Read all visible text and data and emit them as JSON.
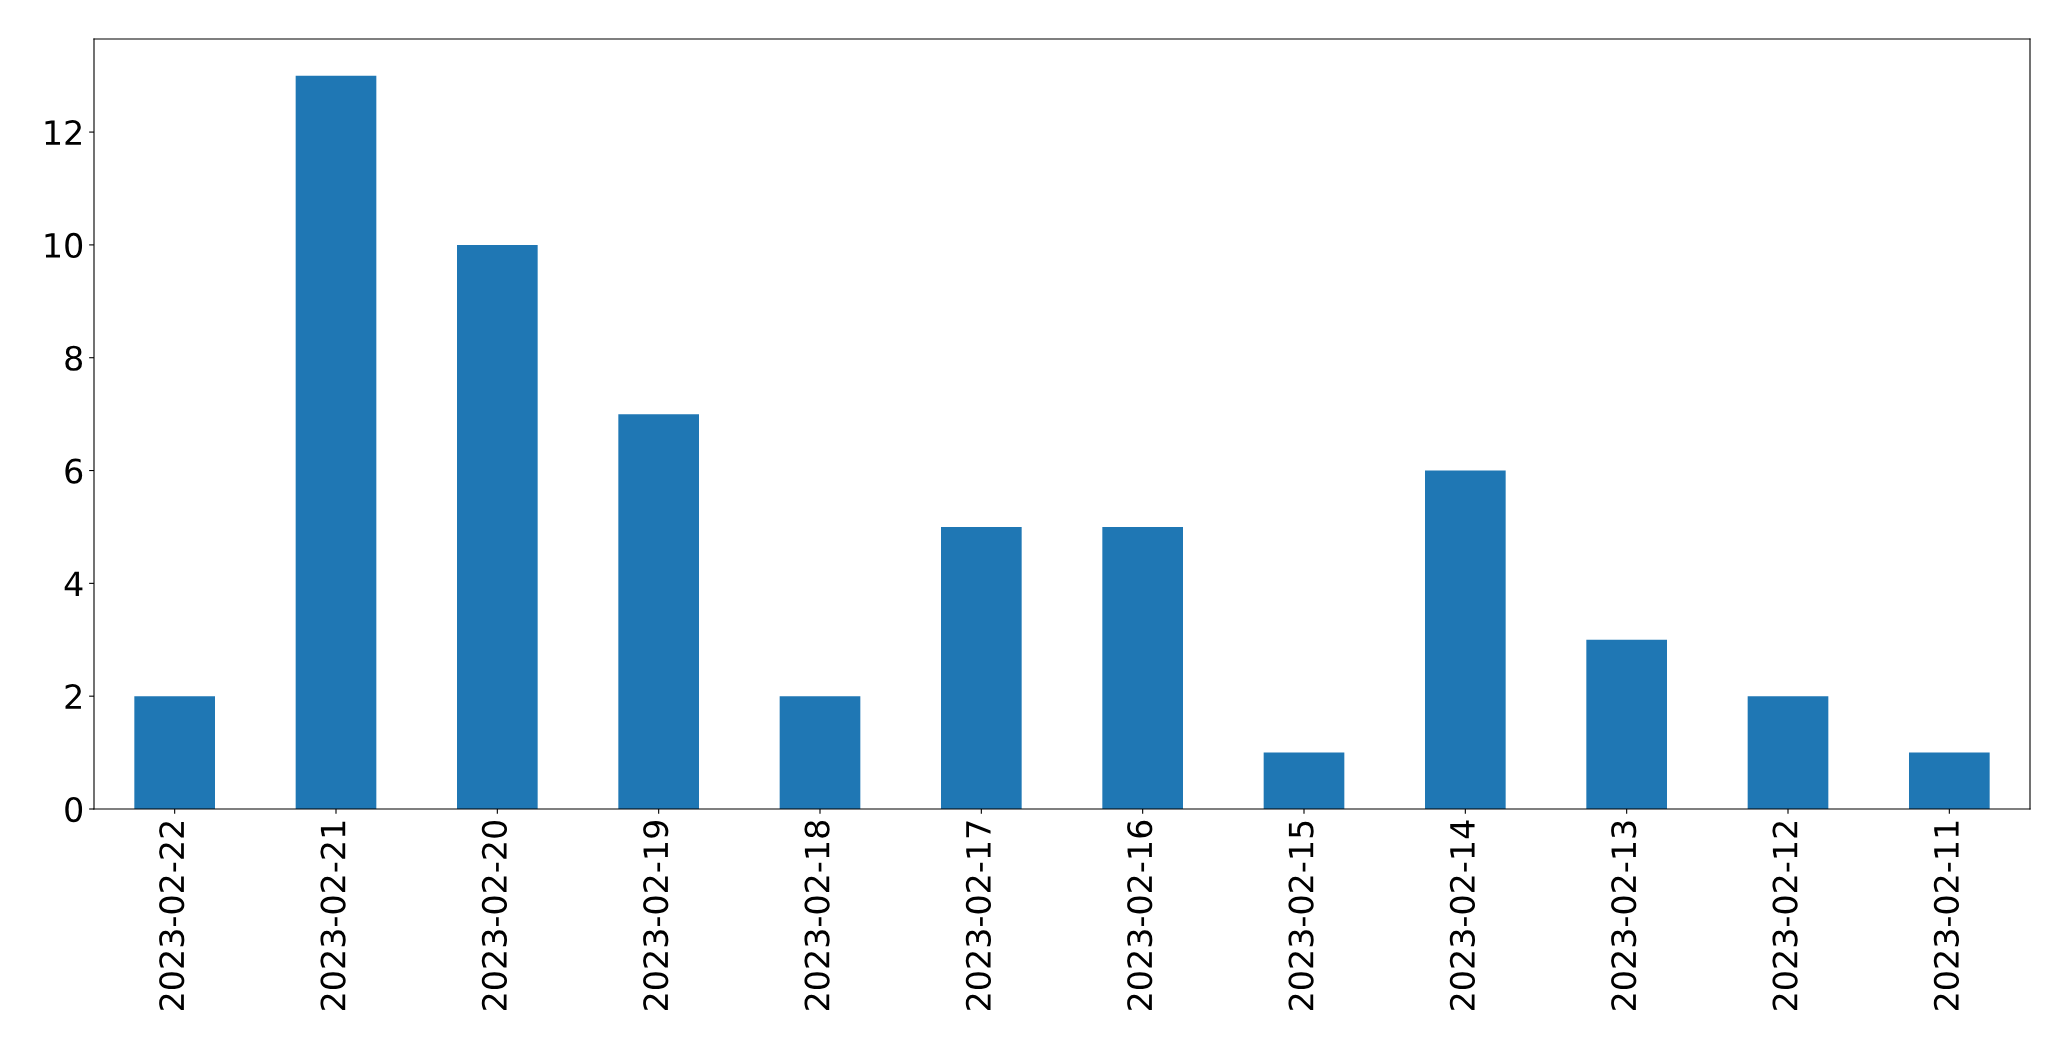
{
  "chart_data": {
    "type": "bar",
    "categories": [
      "2023-02-22",
      "2023-02-21",
      "2023-02-20",
      "2023-02-19",
      "2023-02-18",
      "2023-02-17",
      "2023-02-16",
      "2023-02-15",
      "2023-02-14",
      "2023-02-13",
      "2023-02-12",
      "2023-02-11"
    ],
    "values": [
      2,
      13,
      10,
      7,
      2,
      5,
      5,
      1,
      6,
      3,
      2,
      1
    ],
    "color": "#1f77b4",
    "ylim": [
      0,
      13.65
    ],
    "yticks": [
      0,
      2,
      4,
      6,
      8,
      10,
      12
    ],
    "grid": false,
    "legend": false
  }
}
